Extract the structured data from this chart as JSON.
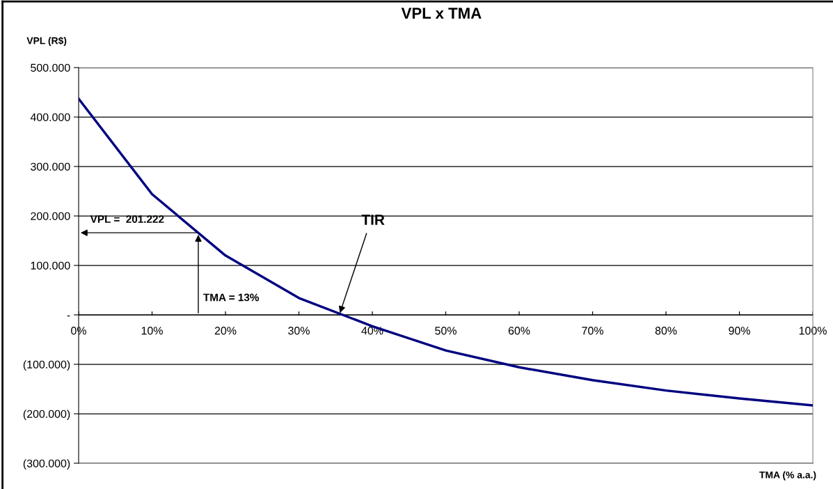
{
  "chart_data": {
    "type": "line",
    "title": "VPL x TMA",
    "xlabel": "TMA (% a.a.)",
    "ylabel": "VPL (R$)",
    "x": [
      0,
      10,
      20,
      30,
      40,
      50,
      60,
      70,
      80,
      90,
      100
    ],
    "series": [
      {
        "color": "#000080",
        "values": [
          437000,
          244000,
          120000,
          34000,
          -23000,
          -72000,
          -106000,
          -132000,
          -153000,
          -169000,
          -183000
        ]
      }
    ],
    "xlim": [
      0,
      100
    ],
    "xticks": [
      {
        "value": 0,
        "label": "0%"
      },
      {
        "value": 10,
        "label": "10%"
      },
      {
        "value": 20,
        "label": "20%"
      },
      {
        "value": 30,
        "label": "30%"
      },
      {
        "value": 40,
        "label": "40%"
      },
      {
        "value": 50,
        "label": "50%"
      },
      {
        "value": 60,
        "label": "60%"
      },
      {
        "value": 70,
        "label": "70%"
      },
      {
        "value": 80,
        "label": "80%"
      },
      {
        "value": 90,
        "label": "90%"
      },
      {
        "value": 100,
        "label": "100%"
      }
    ],
    "ylim": [
      -300000,
      500000
    ],
    "yticks": [
      {
        "value": -300000,
        "label": "(300.000)"
      },
      {
        "value": -200000,
        "label": "(200.000)"
      },
      {
        "value": -100000,
        "label": "(100.000)"
      },
      {
        "value": 0,
        "label": "-"
      },
      {
        "value": 100000,
        "label": "100.000"
      },
      {
        "value": 200000,
        "label": "200.000"
      },
      {
        "value": 300000,
        "label": "300.000"
      },
      {
        "value": 400000,
        "label": "400.000"
      },
      {
        "value": 500000,
        "label": "500.000"
      }
    ],
    "grid": "y",
    "marker": "none",
    "line_style": "solid",
    "annotations": [
      "VPL =  201.222",
      {
        "text": "TMA = 13%",
        "x": 16.3,
        "y": 166000
      },
      {
        "text": "TIR",
        "x": 35.5,
        "y": 0
      }
    ]
  }
}
